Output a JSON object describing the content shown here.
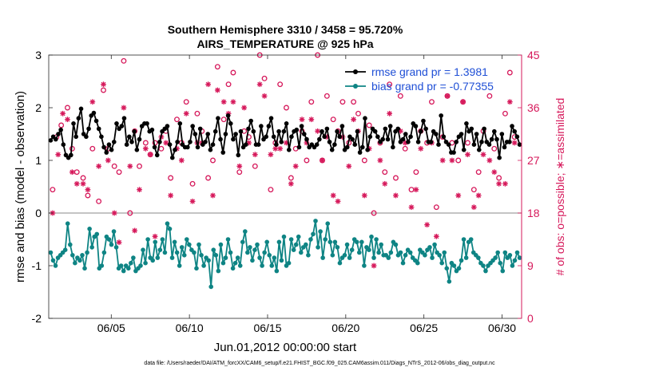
{
  "chart_data": {
    "type": "line",
    "title_line1": "Southern Hemisphere 3310 / 3458 = 95.720%",
    "title_line2": "AIRS_TEMPERATURE @ 925 hPa",
    "xlabel": "Jun.01,2012 00:00:00 start",
    "ylabel_left": "rmse and bias (model - observation)",
    "ylabel_right": "# of obs: o=possible; ∗=assimilated",
    "footer": "data file: /Users/raeder/DAI/ATM_forcXX/CAM6_setup/f.e21.FHIST_BGC.f09_025.CAM6assim.011/Diags_NTrS_2012-06/obs_diag_output.nc",
    "xlim": [
      1,
      31.25
    ],
    "ylim_left": [
      -2,
      3
    ],
    "ylim_right": [
      0,
      45
    ],
    "x_ticks": [
      5,
      10,
      15,
      20,
      25,
      30
    ],
    "x_tick_labels": [
      "06/05",
      "06/10",
      "06/15",
      "06/20",
      "06/25",
      "06/30"
    ],
    "y_left_ticks": [
      "-2",
      "-1",
      "0",
      "1",
      "2",
      "3"
    ],
    "y_right_ticks": [
      "0",
      "9",
      "18",
      "27",
      "36",
      "45"
    ],
    "legend": [
      "rmse grand pr = 1.3981",
      "bias grand pr = -0.77355"
    ],
    "colors": {
      "rmse": "#000000",
      "bias": "#0e8484",
      "obs": "#d6195b",
      "zero_line": "#a0a0a0",
      "legend_text": "#1f4fd6"
    },
    "rmse": [
      1.38,
      1.45,
      1.4,
      1.5,
      1.58,
      1.3,
      1.1,
      1.05,
      1.1,
      1.7,
      1.45,
      1.8,
      1.98,
      1.5,
      1.45,
      1.6,
      1.85,
      1.9,
      1.75,
      1.6,
      1.45,
      1.25,
      1.15,
      1.3,
      1.2,
      1.35,
      1.7,
      1.6,
      1.65,
      1.8,
      1.3,
      1.45,
      1.35,
      1.55,
      1.2,
      1.4,
      1.65,
      1.7,
      1.7,
      1.55,
      1.58,
      1.25,
      1.1,
      1.35,
      1.55,
      1.6,
      1.65,
      1.3,
      1.05,
      1.2,
      1.35,
      1.7,
      1.3,
      1.25,
      1.25,
      1.35,
      1.65,
      1.5,
      1.25,
      1.6,
      1.3,
      1.35,
      1.5,
      1.2,
      1.3,
      1.55,
      1.8,
      1.4,
      1.15,
      1.5,
      1.85,
      1.7,
      1.4,
      1.5,
      1.1,
      1.55,
      1.25,
      1.3,
      1.6,
      1.75,
      1.55,
      1.3,
      1.3,
      1.65,
      1.4,
      1.45,
      1.65,
      1.8,
      1.45,
      1.3,
      1.55,
      1.35,
      1.55,
      1.7,
      1.2,
      1.45,
      1.55,
      1.58,
      1.25,
      1.65,
      1.5,
      1.4,
      1.25,
      1.3,
      1.25,
      1.3,
      1.4,
      1.55,
      1.45,
      1.6,
      1.35,
      1.2,
      1.3,
      1.55,
      1.45,
      1.65,
      1.2,
      1.25,
      1.45,
      1.4,
      1.3,
      1.55,
      1.15,
      1.25,
      1.8,
      1.2,
      1.45,
      1.6,
      1.55,
      1.45,
      1.35,
      1.4,
      1.6,
      1.4,
      1.65,
      1.25,
      1.55,
      1.6,
      1.35,
      1.4,
      1.5,
      1.35,
      1.45,
      1.7,
      1.65,
      1.35,
      1.55,
      1.75,
      1.6,
      1.35,
      1.35,
      1.55,
      1.5,
      1.3,
      1.85,
      1.45,
      1.35,
      1.3,
      1.15,
      1.15,
      1.35,
      1.45,
      1.5,
      1.2,
      1.7,
      1.55,
      1.6,
      1.3,
      1.5,
      1.2,
      1.35,
      1.6,
      1.35,
      1.3,
      1.4,
      1.55,
      1.4,
      1.05,
      1.5,
      1.25,
      1.35,
      1.35,
      1.65,
      1.55,
      1.45,
      1.3
    ],
    "bias": [
      -0.75,
      -0.9,
      -1.0,
      -0.85,
      -0.8,
      -0.75,
      -0.7,
      -0.2,
      -0.6,
      -0.8,
      -0.95,
      -0.85,
      -0.9,
      -0.8,
      -1.05,
      -0.75,
      -0.3,
      -0.65,
      -0.45,
      -0.4,
      -1.05,
      -1.0,
      -0.75,
      -0.45,
      -0.5,
      -0.6,
      -0.35,
      -0.65,
      -1.05,
      -1.0,
      -1.1,
      -1.0,
      -1.05,
      -0.95,
      -0.85,
      -1.1,
      -1.05,
      -1.0,
      -0.7,
      -0.95,
      -0.5,
      -0.85,
      -0.9,
      -0.55,
      -0.85,
      -0.7,
      -0.5,
      -0.75,
      -0.2,
      -0.3,
      -0.85,
      -0.55,
      -0.75,
      -1.0,
      -0.65,
      -0.8,
      -0.5,
      -0.6,
      -0.7,
      -0.75,
      -1.05,
      -0.6,
      -0.8,
      -1.0,
      -0.85,
      -0.9,
      -1.4,
      -0.7,
      -0.8,
      -1.1,
      -0.6,
      -0.95,
      -0.85,
      -0.5,
      -0.75,
      -1.05,
      -0.95,
      -0.85,
      -1.0,
      -0.55,
      -0.35,
      -0.75,
      -0.65,
      -0.9,
      -0.7,
      -0.6,
      -0.85,
      -1.0,
      -0.75,
      -0.55,
      -0.8,
      -1.0,
      -0.85,
      -1.1,
      -0.55,
      -0.9,
      -0.45,
      -1.0,
      -0.95,
      -0.5,
      -0.7,
      -0.6,
      -0.45,
      -0.75,
      -0.65,
      -0.6,
      -0.8,
      -0.5,
      -0.4,
      -0.15,
      -0.65,
      -0.35,
      -0.85,
      -0.5,
      -0.2,
      -0.55,
      -0.8,
      -0.55,
      -0.65,
      -0.95,
      -0.85,
      -0.8,
      -0.6,
      -0.85,
      -0.7,
      -0.5,
      -0.55,
      -0.75,
      -0.55,
      -1.0,
      -0.65,
      -0.7,
      -0.45,
      -0.85,
      -0.5,
      -0.75,
      -0.6,
      -0.8,
      -0.8,
      -0.85,
      -0.75,
      -0.55,
      -0.6,
      -0.8,
      -0.75,
      -0.95,
      -0.8,
      -0.7,
      -0.75,
      -0.85,
      -0.9,
      -0.95,
      -0.7,
      -0.75,
      -0.8,
      -0.7,
      -0.65,
      -0.85,
      -0.6,
      -0.75,
      -0.8,
      -0.95,
      -0.75,
      -1.05,
      -1.3,
      -0.95,
      -1.0,
      -1.1,
      -1.05,
      -0.9,
      -0.5,
      -0.85,
      -0.55,
      -0.5,
      -0.75,
      -0.8,
      -0.85,
      -0.95,
      -1.0,
      -1.1,
      -1.0,
      -0.95,
      -0.9,
      -0.85,
      -0.75,
      -0.95,
      -1.1,
      -0.75,
      -0.85,
      -0.8,
      -1.0,
      -0.9,
      -0.75,
      -0.85
    ],
    "obs_possible": [
      [
        1.25,
        22
      ],
      [
        1.5,
        31
      ],
      [
        1.8,
        33
      ],
      [
        2.2,
        36
      ],
      [
        2.5,
        29
      ],
      [
        2.8,
        25
      ],
      [
        3.2,
        24
      ],
      [
        3.5,
        21
      ],
      [
        3.8,
        29
      ],
      [
        4.2,
        20
      ],
      [
        4.5,
        39
      ],
      [
        4.8,
        29
      ],
      [
        5.2,
        26
      ],
      [
        5.5,
        25
      ],
      [
        5.8,
        44
      ],
      [
        6.2,
        18
      ],
      [
        6.5,
        32
      ],
      [
        6.8,
        26
      ],
      [
        7.2,
        30
      ],
      [
        7.5,
        28
      ],
      [
        7.8,
        30
      ],
      [
        8.2,
        29
      ],
      [
        8.5,
        32
      ],
      [
        8.8,
        24
      ],
      [
        9.2,
        34
      ],
      [
        9.5,
        30
      ],
      [
        9.8,
        37
      ],
      [
        10.2,
        23
      ],
      [
        10.5,
        35
      ],
      [
        10.8,
        32
      ],
      [
        11.2,
        24
      ],
      [
        11.5,
        27
      ],
      [
        11.8,
        43
      ],
      [
        12.2,
        34
      ],
      [
        12.5,
        40
      ],
      [
        12.8,
        42
      ],
      [
        13.2,
        25
      ],
      [
        13.5,
        32
      ],
      [
        13.8,
        31
      ],
      [
        14.2,
        26
      ],
      [
        14.5,
        45
      ],
      [
        14.8,
        41
      ],
      [
        15.2,
        22
      ],
      [
        15.5,
        30
      ],
      [
        15.8,
        40
      ],
      [
        16.2,
        36
      ],
      [
        16.5,
        24
      ],
      [
        16.8,
        29
      ],
      [
        17.2,
        32
      ],
      [
        17.5,
        27
      ],
      [
        17.8,
        37
      ],
      [
        18.2,
        45
      ],
      [
        18.5,
        27
      ],
      [
        18.8,
        38
      ],
      [
        19.2,
        34
      ],
      [
        19.5,
        32
      ],
      [
        19.8,
        37
      ],
      [
        20.2,
        30
      ],
      [
        20.5,
        37
      ],
      [
        20.8,
        35
      ],
      [
        21.2,
        27
      ],
      [
        21.5,
        33
      ],
      [
        21.8,
        18
      ],
      [
        22.2,
        30
      ],
      [
        22.5,
        25
      ],
      [
        22.8,
        40
      ],
      [
        23.2,
        24
      ],
      [
        23.5,
        38
      ],
      [
        23.8,
        29
      ],
      [
        24.2,
        22
      ],
      [
        24.5,
        25
      ],
      [
        24.8,
        32
      ],
      [
        25.2,
        30
      ],
      [
        25.5,
        37
      ],
      [
        25.8,
        19
      ],
      [
        26.2,
        31
      ],
      [
        26.5,
        38
      ],
      [
        26.8,
        30
      ],
      [
        27.2,
        27
      ],
      [
        27.5,
        37
      ],
      [
        27.8,
        30
      ],
      [
        28.2,
        22
      ],
      [
        28.5,
        25
      ],
      [
        28.8,
        32
      ],
      [
        29.2,
        38
      ],
      [
        29.5,
        29
      ],
      [
        29.8,
        24
      ],
      [
        30.2,
        35
      ],
      [
        30.5,
        42
      ],
      [
        30.8,
        31
      ]
    ],
    "obs_assimilated": [
      [
        1.25,
        18
      ],
      [
        1.6,
        28
      ],
      [
        1.9,
        35
      ],
      [
        2.2,
        34
      ],
      [
        2.5,
        25
      ],
      [
        2.8,
        23
      ],
      [
        3.2,
        23
      ],
      [
        3.5,
        22
      ],
      [
        3.8,
        37
      ],
      [
        4.2,
        26
      ],
      [
        4.5,
        40
      ],
      [
        4.8,
        27
      ],
      [
        5.2,
        18
      ],
      [
        5.5,
        13
      ],
      [
        5.8,
        36
      ],
      [
        6.2,
        26
      ],
      [
        6.5,
        15
      ],
      [
        6.8,
        22
      ],
      [
        7.2,
        29
      ],
      [
        7.5,
        28
      ],
      [
        7.8,
        14
      ],
      [
        8.2,
        31
      ],
      [
        8.5,
        30
      ],
      [
        8.8,
        21
      ],
      [
        9.2,
        29
      ],
      [
        9.5,
        27
      ],
      [
        9.8,
        35
      ],
      [
        10.2,
        20
      ],
      [
        10.5,
        30
      ],
      [
        10.8,
        30
      ],
      [
        11.2,
        40
      ],
      [
        11.5,
        21
      ],
      [
        11.8,
        39
      ],
      [
        12.2,
        37
      ],
      [
        12.5,
        35
      ],
      [
        12.8,
        37
      ],
      [
        13.2,
        26
      ],
      [
        13.5,
        36
      ],
      [
        13.8,
        30
      ],
      [
        14.2,
        28
      ],
      [
        14.5,
        40
      ],
      [
        14.8,
        38
      ],
      [
        15.2,
        28
      ],
      [
        15.5,
        29
      ],
      [
        15.8,
        29
      ],
      [
        16.2,
        30
      ],
      [
        16.5,
        23
      ],
      [
        16.8,
        26
      ],
      [
        17.2,
        34
      ],
      [
        17.5,
        30
      ],
      [
        17.8,
        34
      ],
      [
        18.2,
        32
      ],
      [
        18.5,
        27
      ],
      [
        18.8,
        31
      ],
      [
        19.2,
        21
      ],
      [
        19.5,
        20
      ],
      [
        19.8,
        31
      ],
      [
        20.2,
        26
      ],
      [
        20.5,
        34
      ],
      [
        20.8,
        32
      ],
      [
        21.2,
        21
      ],
      [
        21.5,
        29
      ],
      [
        21.8,
        9
      ],
      [
        22.2,
        27
      ],
      [
        22.5,
        23
      ],
      [
        22.8,
        35
      ],
      [
        23.2,
        21
      ],
      [
        23.5,
        32
      ],
      [
        23.8,
        30
      ],
      [
        24.2,
        19
      ],
      [
        24.5,
        22
      ],
      [
        24.8,
        29
      ],
      [
        25.2,
        16
      ],
      [
        25.5,
        30
      ],
      [
        25.8,
        14
      ],
      [
        26.2,
        27
      ],
      [
        26.5,
        38
      ],
      [
        26.8,
        27
      ],
      [
        27.2,
        21
      ],
      [
        27.5,
        37
      ],
      [
        27.8,
        28
      ],
      [
        28.2,
        19
      ],
      [
        28.5,
        21
      ],
      [
        28.8,
        28
      ],
      [
        29.2,
        27
      ],
      [
        29.5,
        25
      ],
      [
        29.8,
        23
      ],
      [
        30.2,
        23
      ],
      [
        30.5,
        37
      ],
      [
        30.8,
        30
      ]
    ]
  }
}
